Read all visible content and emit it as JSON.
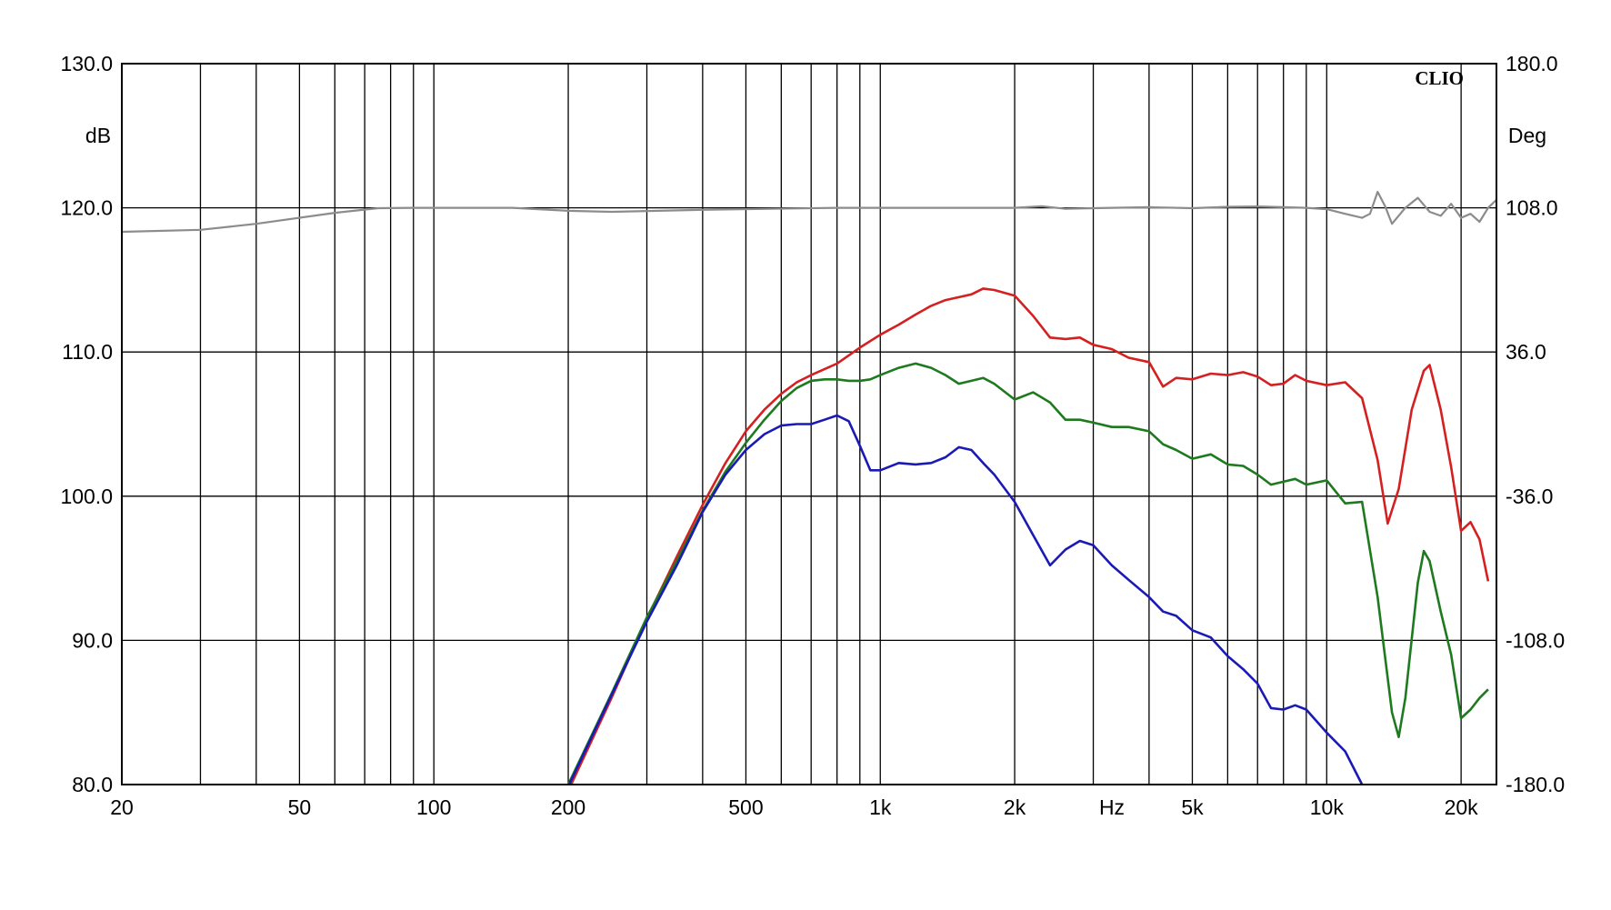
{
  "chart_data": {
    "type": "line",
    "brand": "CLIO",
    "x_scale": "log",
    "xlim": [
      20,
      24000
    ],
    "xlabel": "Hz",
    "x_ticks": [
      {
        "value": 20,
        "label": "20"
      },
      {
        "value": 50,
        "label": "50"
      },
      {
        "value": 100,
        "label": "100"
      },
      {
        "value": 200,
        "label": "200"
      },
      {
        "value": 500,
        "label": "500"
      },
      {
        "value": 1000,
        "label": "1k"
      },
      {
        "value": 2000,
        "label": "2k"
      },
      {
        "value": 5000,
        "label": "5k"
      },
      {
        "value": 10000,
        "label": "10k"
      },
      {
        "value": 20000,
        "label": "20k"
      }
    ],
    "x_gridlines": [
      20,
      30,
      40,
      50,
      60,
      70,
      80,
      90,
      100,
      200,
      300,
      400,
      500,
      600,
      700,
      800,
      900,
      1000,
      2000,
      3000,
      4000,
      5000,
      6000,
      7000,
      8000,
      9000,
      10000,
      20000
    ],
    "ylim": [
      80,
      130
    ],
    "ylabel": "dB",
    "y_ticks": [
      "80.0",
      "90.0",
      "100.0",
      "110.0",
      "120.0",
      "130.0"
    ],
    "y2lim": [
      -180,
      180
    ],
    "y2label": "Deg",
    "y2_ticks": [
      "-180.0",
      "-108.0",
      "-36.0",
      "36.0",
      "108.0",
      "180.0"
    ],
    "grid": true,
    "series": [
      {
        "color": "#d42020",
        "points": [
          [
            203,
            80
          ],
          [
            250,
            86
          ],
          [
            300,
            91.5
          ],
          [
            350,
            95.8
          ],
          [
            400,
            99.4
          ],
          [
            450,
            102.3
          ],
          [
            500,
            104.5
          ],
          [
            550,
            106
          ],
          [
            600,
            107.1
          ],
          [
            650,
            107.9
          ],
          [
            700,
            108.4
          ],
          [
            800,
            109.2
          ],
          [
            900,
            110.3
          ],
          [
            1000,
            111.2
          ],
          [
            1100,
            111.9
          ],
          [
            1200,
            112.6
          ],
          [
            1300,
            113.2
          ],
          [
            1400,
            113.6
          ],
          [
            1500,
            113.8
          ],
          [
            1600,
            114.0
          ],
          [
            1700,
            114.4
          ],
          [
            1800,
            114.3
          ],
          [
            2000,
            113.9
          ],
          [
            2200,
            112.5
          ],
          [
            2400,
            111
          ],
          [
            2600,
            110.9
          ],
          [
            2800,
            111
          ],
          [
            3000,
            110.5
          ],
          [
            3300,
            110.2
          ],
          [
            3600,
            109.6
          ],
          [
            4000,
            109.3
          ],
          [
            4300,
            107.6
          ],
          [
            4600,
            108.2
          ],
          [
            5000,
            108.1
          ],
          [
            5500,
            108.5
          ],
          [
            6000,
            108.4
          ],
          [
            6500,
            108.6
          ],
          [
            7000,
            108.3
          ],
          [
            7500,
            107.7
          ],
          [
            8000,
            107.8
          ],
          [
            8500,
            108.4
          ],
          [
            9000,
            108
          ],
          [
            10000,
            107.7
          ],
          [
            11000,
            107.9
          ],
          [
            12000,
            106.8
          ],
          [
            13000,
            102.5
          ],
          [
            13700,
            98.1
          ],
          [
            14500,
            100.5
          ],
          [
            15500,
            106
          ],
          [
            16500,
            108.7
          ],
          [
            17000,
            109.1
          ],
          [
            18000,
            106
          ],
          [
            19000,
            102
          ],
          [
            20000,
            97.6
          ],
          [
            21000,
            98.2
          ],
          [
            22000,
            97
          ],
          [
            23000,
            94.1
          ]
        ]
      },
      {
        "color": "#1e7a1e",
        "points": [
          [
            200,
            80
          ],
          [
            250,
            86.3
          ],
          [
            300,
            91.6
          ],
          [
            350,
            95.5
          ],
          [
            400,
            99
          ],
          [
            450,
            101.7
          ],
          [
            500,
            103.7
          ],
          [
            550,
            105.3
          ],
          [
            600,
            106.6
          ],
          [
            650,
            107.5
          ],
          [
            700,
            108
          ],
          [
            750,
            108.1
          ],
          [
            800,
            108.1
          ],
          [
            850,
            108
          ],
          [
            900,
            108
          ],
          [
            950,
            108.1
          ],
          [
            1000,
            108.4
          ],
          [
            1100,
            108.9
          ],
          [
            1200,
            109.2
          ],
          [
            1300,
            108.9
          ],
          [
            1400,
            108.4
          ],
          [
            1500,
            107.8
          ],
          [
            1600,
            108
          ],
          [
            1700,
            108.2
          ],
          [
            1800,
            107.8
          ],
          [
            2000,
            106.7
          ],
          [
            2200,
            107.2
          ],
          [
            2400,
            106.5
          ],
          [
            2600,
            105.3
          ],
          [
            2800,
            105.3
          ],
          [
            3000,
            105.1
          ],
          [
            3300,
            104.8
          ],
          [
            3600,
            104.8
          ],
          [
            4000,
            104.5
          ],
          [
            4300,
            103.6
          ],
          [
            4600,
            103.2
          ],
          [
            5000,
            102.6
          ],
          [
            5500,
            102.9
          ],
          [
            6000,
            102.2
          ],
          [
            6500,
            102.1
          ],
          [
            7000,
            101.5
          ],
          [
            7500,
            100.8
          ],
          [
            8000,
            101
          ],
          [
            8500,
            101.2
          ],
          [
            9000,
            100.8
          ],
          [
            10000,
            101.1
          ],
          [
            11000,
            99.5
          ],
          [
            12000,
            99.6
          ],
          [
            13000,
            93
          ],
          [
            14000,
            85
          ],
          [
            14500,
            83.3
          ],
          [
            15000,
            86
          ],
          [
            16000,
            94
          ],
          [
            16500,
            96.2
          ],
          [
            17000,
            95.5
          ],
          [
            18000,
            92
          ],
          [
            19000,
            89
          ],
          [
            20000,
            84.6
          ],
          [
            21000,
            85.2
          ],
          [
            22000,
            86
          ],
          [
            23000,
            86.6
          ]
        ]
      },
      {
        "color": "#1a1ab4",
        "points": [
          [
            201,
            80
          ],
          [
            250,
            86.2
          ],
          [
            300,
            91.3
          ],
          [
            350,
            95.2
          ],
          [
            400,
            98.9
          ],
          [
            450,
            101.5
          ],
          [
            500,
            103.2
          ],
          [
            550,
            104.3
          ],
          [
            600,
            104.9
          ],
          [
            650,
            105
          ],
          [
            700,
            105
          ],
          [
            750,
            105.3
          ],
          [
            800,
            105.6
          ],
          [
            850,
            105.2
          ],
          [
            900,
            103.5
          ],
          [
            950,
            101.8
          ],
          [
            1000,
            101.8
          ],
          [
            1100,
            102.3
          ],
          [
            1200,
            102.2
          ],
          [
            1300,
            102.3
          ],
          [
            1400,
            102.7
          ],
          [
            1500,
            103.4
          ],
          [
            1600,
            103.2
          ],
          [
            1700,
            102.3
          ],
          [
            1800,
            101.5
          ],
          [
            2000,
            99.6
          ],
          [
            2200,
            97.3
          ],
          [
            2400,
            95.2
          ],
          [
            2600,
            96.3
          ],
          [
            2800,
            96.9
          ],
          [
            3000,
            96.6
          ],
          [
            3300,
            95.2
          ],
          [
            3600,
            94.2
          ],
          [
            4000,
            93
          ],
          [
            4300,
            92
          ],
          [
            4600,
            91.7
          ],
          [
            5000,
            90.7
          ],
          [
            5500,
            90.2
          ],
          [
            6000,
            88.9
          ],
          [
            6500,
            88
          ],
          [
            7000,
            87
          ],
          [
            7500,
            85.3
          ],
          [
            8000,
            85.2
          ],
          [
            8500,
            85.5
          ],
          [
            9000,
            85.2
          ],
          [
            10000,
            83.6
          ],
          [
            11000,
            82.3
          ],
          [
            12000,
            80
          ]
        ]
      },
      {
        "color": "#8c8c8c",
        "axis": "right",
        "points": [
          [
            20,
            96
          ],
          [
            30,
            97
          ],
          [
            40,
            100
          ],
          [
            60,
            105.5
          ],
          [
            75,
            107.8
          ],
          [
            90,
            108
          ],
          [
            150,
            108
          ],
          [
            200,
            106.5
          ],
          [
            250,
            106
          ],
          [
            400,
            107
          ],
          [
            800,
            108
          ],
          [
            1500,
            108
          ],
          [
            2000,
            108
          ],
          [
            2300,
            108.8
          ],
          [
            2600,
            107.5
          ],
          [
            3000,
            107.8
          ],
          [
            4000,
            108.3
          ],
          [
            5000,
            107.8
          ],
          [
            6000,
            108.5
          ],
          [
            7000,
            108.7
          ],
          [
            8000,
            108.3
          ],
          [
            9000,
            108
          ],
          [
            10000,
            107.3
          ],
          [
            11000,
            105
          ],
          [
            12000,
            103
          ],
          [
            12500,
            105
          ],
          [
            13000,
            116
          ],
          [
            13500,
            109
          ],
          [
            14000,
            100
          ],
          [
            15000,
            108
          ],
          [
            16000,
            113
          ],
          [
            17000,
            106
          ],
          [
            18000,
            104
          ],
          [
            19000,
            110
          ],
          [
            20000,
            103
          ],
          [
            21000,
            105
          ],
          [
            22000,
            101
          ],
          [
            23000,
            108
          ],
          [
            24000,
            112
          ]
        ]
      }
    ]
  }
}
